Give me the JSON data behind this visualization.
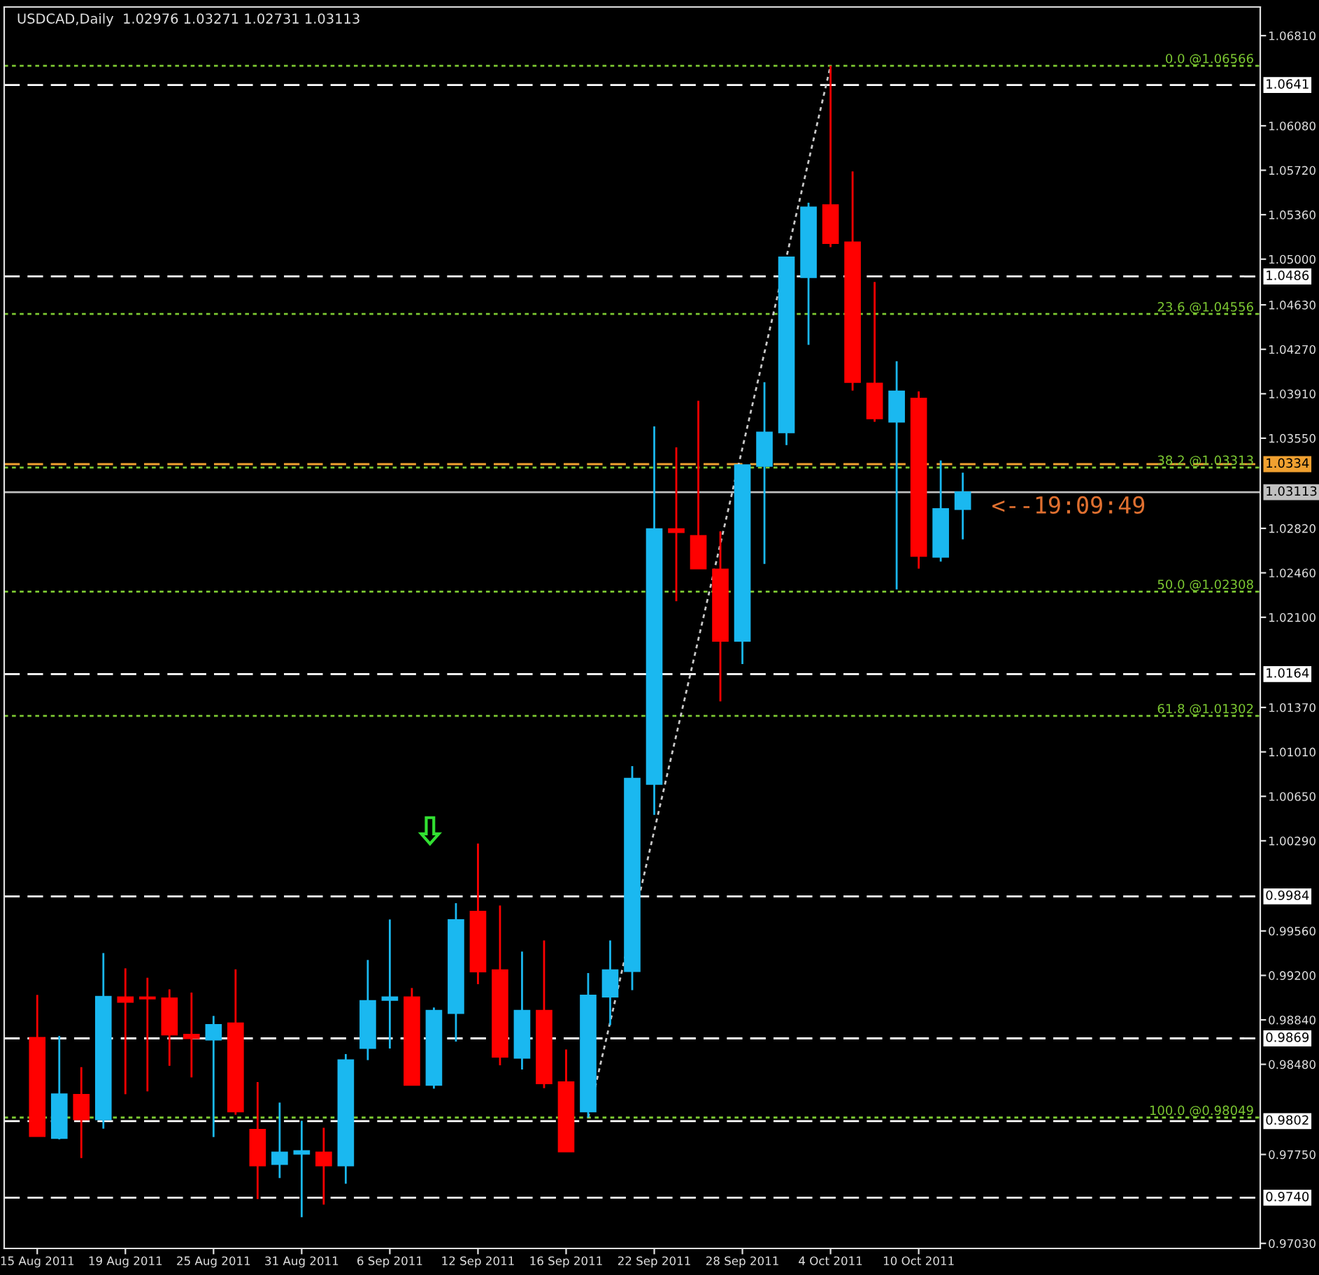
{
  "chart_data": {
    "type": "candlestick",
    "title": "USDCAD,Daily  1.02976 1.03271 1.02731 1.03113",
    "categories": [
      "15 Aug 2011",
      null,
      null,
      null,
      "19 Aug 2011",
      null,
      null,
      null,
      "25 Aug 2011",
      null,
      null,
      null,
      "31 Aug 2011",
      null,
      null,
      null,
      "6 Sep 2011",
      null,
      null,
      null,
      "12 Sep 2011",
      null,
      null,
      null,
      "16 Sep 2011",
      null,
      null,
      null,
      "22 Sep 2011",
      null,
      null,
      null,
      "28 Sep 2011",
      null,
      null,
      null,
      "4 Oct 2011",
      null,
      null,
      null,
      "10 Oct 2011",
      null,
      null,
      null,
      null,
      null,
      null,
      null,
      null,
      null,
      null,
      null,
      null,
      null,
      null,
      null
    ],
    "ohlc": [
      [
        0.98695,
        0.99042,
        0.97898,
        0.97898
      ],
      [
        0.97883,
        0.9871,
        0.97872,
        0.98238
      ],
      [
        0.98234,
        0.98457,
        0.97721,
        0.98034
      ],
      [
        0.98034,
        0.99381,
        0.97959,
        0.99027
      ],
      [
        0.99023,
        0.99257,
        0.98238,
        0.98985
      ],
      [
        0.99023,
        0.99181,
        0.98261,
        0.99012
      ],
      [
        0.99015,
        0.99087,
        0.98468,
        0.98721
      ],
      [
        0.98721,
        0.99061,
        0.98374,
        0.98691
      ],
      [
        0.98679,
        0.98872,
        0.97891,
        0.988
      ],
      [
        0.98812,
        0.99249,
        0.98072,
        0.98098
      ],
      [
        0.97951,
        0.98336,
        0.97389,
        0.97661
      ],
      [
        0.97672,
        0.9817,
        0.97559,
        0.97766
      ],
      [
        0.97755,
        0.98023,
        0.97242,
        0.97778
      ],
      [
        0.97766,
        0.97966,
        0.97344,
        0.97661
      ],
      [
        0.97661,
        0.98563,
        0.97513,
        0.98514
      ],
      [
        0.98612,
        0.99325,
        0.98514,
        0.98993
      ],
      [
        0.99,
        0.99653,
        0.98608,
        0.99023
      ],
      [
        0.99023,
        0.99098,
        0.98313,
        0.98313
      ],
      [
        0.98313,
        0.9894,
        0.98283,
        0.98914
      ],
      [
        0.98895,
        0.99785,
        0.98664,
        0.99649
      ],
      [
        0.99717,
        1.00268,
        0.99129,
        0.99231
      ],
      [
        0.99242,
        0.99766,
        0.98472,
        0.9854
      ],
      [
        0.98532,
        0.99393,
        0.98438,
        0.98914
      ],
      [
        0.98914,
        0.99483,
        0.98287,
        0.98325
      ],
      [
        0.98336,
        0.986,
        0.97774,
        0.97774
      ],
      [
        0.98098,
        0.99219,
        0.98049,
        0.99038
      ],
      [
        0.99027,
        0.99483,
        0.98797,
        0.99242
      ],
      [
        0.99234,
        1.00895,
        0.9908,
        1.00793
      ],
      [
        1.0075,
        1.03646,
        1.005,
        1.02815
      ],
      [
        1.02815,
        1.03476,
        1.0223,
        1.02789
      ],
      [
        1.02759,
        1.03853,
        1.02494,
        1.02494
      ],
      [
        1.02487,
        1.02796,
        1.01419,
        1.01909
      ],
      [
        1.01909,
        1.03332,
        1.01721,
        1.03332
      ],
      [
        1.03325,
        1.04004,
        1.02532,
        1.03597
      ],
      [
        1.03597,
        1.05015,
        1.03495,
        1.05015
      ],
      [
        1.04853,
        1.05457,
        1.04306,
        1.05419
      ],
      [
        1.05438,
        1.06566,
        1.05098,
        1.05129
      ],
      [
        1.05136,
        1.0571,
        1.03936,
        1.04004
      ],
      [
        1.03993,
        1.04815,
        1.03683,
        1.0371
      ],
      [
        1.03683,
        1.04174,
        1.02325,
        1.03929
      ],
      [
        1.03872,
        1.03929,
        1.02494,
        1.02596
      ],
      [
        1.02589,
        1.0337,
        1.02551,
        1.02977
      ],
      [
        1.02976,
        1.03271,
        1.02731,
        1.03113
      ],
      null,
      null,
      null,
      null,
      null,
      null,
      null,
      null,
      null,
      null,
      null,
      null,
      null
    ],
    "colors": [
      "#ff0000",
      "#1ab8f0",
      "#ff0000",
      "#1ab8f0",
      "#ff0000",
      "#ff0000",
      "#ff0000",
      "#ff0000",
      "#1ab8f0",
      "#ff0000",
      "#ff0000",
      "#1ab8f0",
      "#1ab8f0",
      "#ff0000",
      "#1ab8f0",
      "#1ab8f0",
      "#1ab8f0",
      "#ff0000",
      "#1ab8f0",
      "#1ab8f0",
      "#ff0000",
      "#ff0000",
      "#1ab8f0",
      "#ff0000",
      "#ff0000",
      "#1ab8f0",
      "#1ab8f0",
      "#1ab8f0",
      "#1ab8f0",
      "#ff0000",
      "#ff0000",
      "#ff0000",
      "#1ab8f0",
      "#1ab8f0",
      "#1ab8f0",
      "#1ab8f0",
      "#ff0000",
      "#ff0000",
      "#ff0000",
      "#1ab8f0",
      "#ff0000",
      "#1ab8f0",
      "#1ab8f0",
      null,
      null,
      null,
      null,
      null,
      null,
      null,
      null,
      null,
      null,
      null,
      null,
      null
    ],
    "series": [
      {
        "type": "line",
        "color": "#c8c8c8",
        "line_style": "dotted",
        "values": [
          null,
          null,
          null,
          null,
          null,
          null,
          null,
          null,
          null,
          null,
          null,
          null,
          null,
          null,
          null,
          null,
          null,
          null,
          null,
          null,
          null,
          null,
          null,
          null,
          null,
          0.98049,
          null,
          null,
          null,
          null,
          null,
          null,
          null,
          null,
          null,
          null,
          1.06566,
          null,
          null,
          null,
          null,
          null,
          null,
          null,
          null,
          null,
          null,
          null,
          null,
          null,
          null,
          null,
          null,
          null,
          null,
          null
        ]
      }
    ],
    "ylim": [
      0.96989,
      1.07042
    ],
    "yticks": [
      {
        "value": 1.0681,
        "label": "1.06810"
      },
      {
        "value": 1.0608,
        "label": "1.06080"
      },
      {
        "value": 1.0572,
        "label": "1.05720"
      },
      {
        "value": 1.0536,
        "label": "1.05360"
      },
      {
        "value": 1.05,
        "label": "1.05000"
      },
      {
        "value": 1.0463,
        "label": "1.04630"
      },
      {
        "value": 1.0427,
        "label": "1.04270"
      },
      {
        "value": 1.0391,
        "label": "1.03910"
      },
      {
        "value": 1.0355,
        "label": "1.03550"
      },
      {
        "value": 1.0282,
        "label": "1.02820"
      },
      {
        "value": 1.0246,
        "label": "1.02460"
      },
      {
        "value": 1.021,
        "label": "1.02100"
      },
      {
        "value": 1.0137,
        "label": "1.01370"
      },
      {
        "value": 1.0101,
        "label": "1.01010"
      },
      {
        "value": 1.0065,
        "label": "1.00650"
      },
      {
        "value": 1.0029,
        "label": "1.00290"
      },
      {
        "value": 0.9956,
        "label": "0.99560"
      },
      {
        "value": 0.992,
        "label": "0.99200"
      },
      {
        "value": 0.9884,
        "label": "0.98840"
      },
      {
        "value": 0.9848,
        "label": "0.98480"
      },
      {
        "value": 0.9775,
        "label": "0.97750"
      },
      {
        "value": 0.9703,
        "label": "0.97030"
      }
    ],
    "ref_lines": [
      {
        "axis": "y",
        "value": 1.0641,
        "label": "1.0641",
        "color": "#ffffff",
        "line_style": "dashed"
      },
      {
        "axis": "y",
        "value": 1.0486,
        "label": "1.0486",
        "color": "#ffffff",
        "line_style": "dashed"
      },
      {
        "axis": "y",
        "value": 1.0164,
        "label": "1.0164",
        "color": "#ffffff",
        "line_style": "dashed"
      },
      {
        "axis": "y",
        "value": 0.9984,
        "label": "0.9984",
        "color": "#ffffff",
        "line_style": "dashed"
      },
      {
        "axis": "y",
        "value": 0.9869,
        "label": "0.9869",
        "color": "#ffffff",
        "line_style": "dashed"
      },
      {
        "axis": "y",
        "value": 0.9802,
        "label": "0.9802",
        "color": "#ffffff",
        "line_style": "dashed"
      },
      {
        "axis": "y",
        "value": 0.974,
        "label": "0.9740",
        "color": "#ffffff",
        "line_style": "dashed"
      },
      {
        "axis": "y",
        "value": 1.0334,
        "label": "1.0334",
        "color": "#f0a030",
        "line_style": "dashed"
      },
      {
        "axis": "y",
        "value": 1.03113,
        "label": "1.03113",
        "color": "#c0c0c0",
        "line_style": "solid"
      },
      {
        "axis": "y",
        "value": 1.06566,
        "label": "0.0 @1.06566",
        "color": "#7cc832",
        "line_style": "dotted"
      },
      {
        "axis": "y",
        "value": 1.04556,
        "label": "23.6 @1.04556",
        "color": "#7cc832",
        "line_style": "dotted"
      },
      {
        "axis": "y",
        "value": 1.03313,
        "label": "38.2 @1.03313",
        "color": "#7cc832",
        "line_style": "dotted"
      },
      {
        "axis": "y",
        "value": 1.02308,
        "label": "50.0 @1.02308",
        "color": "#7cc832",
        "line_style": "dotted"
      },
      {
        "axis": "y",
        "value": 1.01302,
        "label": "61.8 @1.01302",
        "color": "#7cc832",
        "line_style": "dotted"
      },
      {
        "axis": "y",
        "value": 0.98049,
        "label": "100.0 @0.98049",
        "color": "#7cc832",
        "line_style": "dotted"
      }
    ],
    "annotations": [
      "<--19:09:49"
    ]
  }
}
